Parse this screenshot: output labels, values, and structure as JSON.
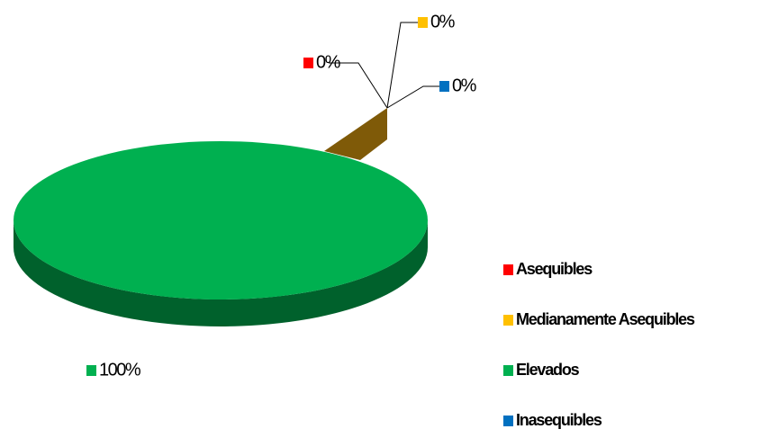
{
  "chart_data": {
    "type": "pie",
    "categories": [
      "Asequibles",
      "Medianamente Asequibles",
      "Elevados",
      "Inasequibles"
    ],
    "values": [
      0,
      0,
      100,
      0
    ],
    "value_labels": [
      "0%",
      "0%",
      "100%",
      "0%"
    ],
    "colors": [
      "#ff0000",
      "#ffc000",
      "#00b050",
      "#0070c0"
    ],
    "legend": "right"
  }
}
